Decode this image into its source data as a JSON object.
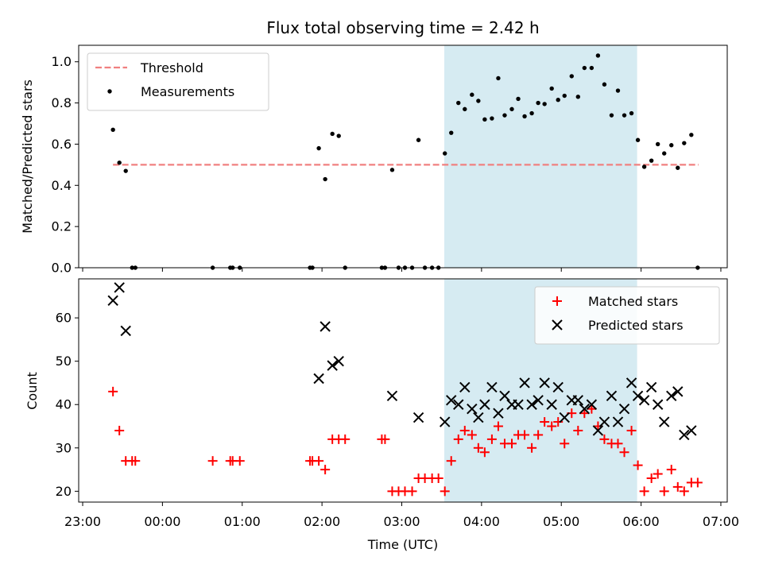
{
  "chart_data": {
    "type": "scatter",
    "title": "Flux total observing time = 2.42 h",
    "xlabel": "Time (UTC)",
    "x_ticks": [
      "23:00",
      "00:00",
      "01:00",
      "02:00",
      "03:00",
      "04:00",
      "05:00",
      "06:00",
      "07:00"
    ],
    "x_range_hours": [
      22.95,
      31.08
    ],
    "shaded_interval": {
      "start": "03:32",
      "end": "05:57",
      "color": "#add8e6"
    },
    "panels": [
      {
        "name": "ratio",
        "ylabel": "Matched/Predicted stars",
        "ylim": [
          0,
          1.08
        ],
        "y_ticks": [
          0.0,
          0.2,
          0.4,
          0.6,
          0.8,
          1.0
        ],
        "legend_position": "upper-left",
        "threshold": {
          "name": "Threshold",
          "value": 0.5,
          "x_start": 23.38,
          "x_end": 30.72,
          "color": "#f08080"
        },
        "series": [
          {
            "name": "Measurements",
            "marker": "dot",
            "color": "#000000",
            "x": [
              23.38,
              23.46,
              23.54,
              23.62,
              23.66,
              24.63,
              24.85,
              24.88,
              24.97,
              25.85,
              25.88,
              25.96,
              26.04,
              26.13,
              26.21,
              26.29,
              26.75,
              26.79,
              26.88,
              26.96,
              27.04,
              27.13,
              27.21,
              27.29,
              27.38,
              27.46,
              27.54,
              27.62,
              27.71,
              27.79,
              27.88,
              27.96,
              28.04,
              28.13,
              28.21,
              28.29,
              28.38,
              28.46,
              28.54,
              28.63,
              28.71,
              28.79,
              28.88,
              28.96,
              29.04,
              29.13,
              29.21,
              29.29,
              29.38,
              29.46,
              29.54,
              29.63,
              29.71,
              29.79,
              29.88,
              29.96,
              30.04,
              30.13,
              30.21,
              30.29,
              30.38,
              30.46,
              30.54,
              30.63,
              30.71
            ],
            "y": [
              0.67,
              0.51,
              0.47,
              0.0,
              0.0,
              0.0,
              0.0,
              0.0,
              0.0,
              0.0,
              0.0,
              0.58,
              0.43,
              0.65,
              0.64,
              0.0,
              0.0,
              0.0,
              0.475,
              0.0,
              0.0,
              0.0,
              0.62,
              0.0,
              0.0,
              0.0,
              0.555,
              0.655,
              0.8,
              0.77,
              0.84,
              0.81,
              0.72,
              0.725,
              0.92,
              0.74,
              0.77,
              0.82,
              0.735,
              0.75,
              0.8,
              0.795,
              0.87,
              0.815,
              0.835,
              0.93,
              0.83,
              0.97,
              0.97,
              1.03,
              0.89,
              0.74,
              0.86,
              0.74,
              0.75,
              0.62,
              0.49,
              0.52,
              0.6,
              0.555,
              0.595,
              0.485,
              0.605,
              0.645,
              0.0
            ]
          }
        ]
      },
      {
        "name": "count",
        "ylabel": "Count",
        "ylim": [
          17.5,
          69
        ],
        "y_ticks": [
          20,
          30,
          40,
          50,
          60
        ],
        "legend_position": "upper-right",
        "series": [
          {
            "name": "Matched stars",
            "marker": "plus",
            "color": "#ff0000",
            "x": [
              23.38,
              23.46,
              23.54,
              23.62,
              23.66,
              24.63,
              24.85,
              24.88,
              24.97,
              25.85,
              25.88,
              25.96,
              26.04,
              26.13,
              26.21,
              26.29,
              26.75,
              26.79,
              26.88,
              26.96,
              27.04,
              27.13,
              27.21,
              27.29,
              27.38,
              27.46,
              27.54,
              27.62,
              27.71,
              27.79,
              27.88,
              27.96,
              28.04,
              28.13,
              28.21,
              28.29,
              28.38,
              28.46,
              28.54,
              28.63,
              28.71,
              28.79,
              28.88,
              28.96,
              29.04,
              29.13,
              29.21,
              29.29,
              29.38,
              29.46,
              29.54,
              29.63,
              29.71,
              29.79,
              29.88,
              29.96,
              30.04,
              30.13,
              30.21,
              30.29,
              30.38,
              30.46,
              30.54,
              30.63,
              30.71
            ],
            "y": [
              43,
              34,
              27,
              27,
              27,
              27,
              27,
              27,
              27,
              27,
              27,
              27,
              25,
              32,
              32,
              32,
              32,
              32,
              20,
              20,
              20,
              20,
              23,
              23,
              23,
              23,
              20,
              27,
              32,
              34,
              33,
              30,
              29,
              32,
              35,
              31,
              31,
              33,
              33,
              30,
              33,
              36,
              35,
              36,
              31,
              38,
              34,
              38,
              39,
              35,
              32,
              31,
              31,
              29,
              34,
              26,
              20,
              23,
              24,
              20,
              25,
              21,
              20,
              22,
              22
            ]
          },
          {
            "name": "Predicted stars",
            "marker": "x",
            "color": "#000000",
            "x": [
              23.38,
              23.46,
              23.54,
              25.96,
              26.04,
              26.13,
              26.21,
              26.88,
              27.21,
              27.54,
              27.62,
              27.71,
              27.79,
              27.88,
              27.96,
              28.04,
              28.13,
              28.21,
              28.29,
              28.38,
              28.46,
              28.54,
              28.63,
              28.71,
              28.79,
              28.88,
              28.96,
              29.04,
              29.13,
              29.21,
              29.29,
              29.38,
              29.46,
              29.54,
              29.63,
              29.71,
              29.79,
              29.88,
              29.96,
              30.04,
              30.13,
              30.21,
              30.29,
              30.38,
              30.46,
              30.54,
              30.63
            ],
            "y": [
              64,
              67,
              57,
              46,
              58,
              49,
              50,
              42,
              37,
              36,
              41,
              40,
              44,
              39,
              37,
              40,
              44,
              38,
              42,
              40,
              40,
              45,
              40,
              41,
              45,
              40,
              44,
              37,
              41,
              41,
              39,
              40,
              34,
              36,
              42,
              36,
              39,
              45,
              42,
              41,
              44,
              40,
              36,
              42,
              43,
              33,
              34
            ]
          }
        ]
      }
    ]
  }
}
